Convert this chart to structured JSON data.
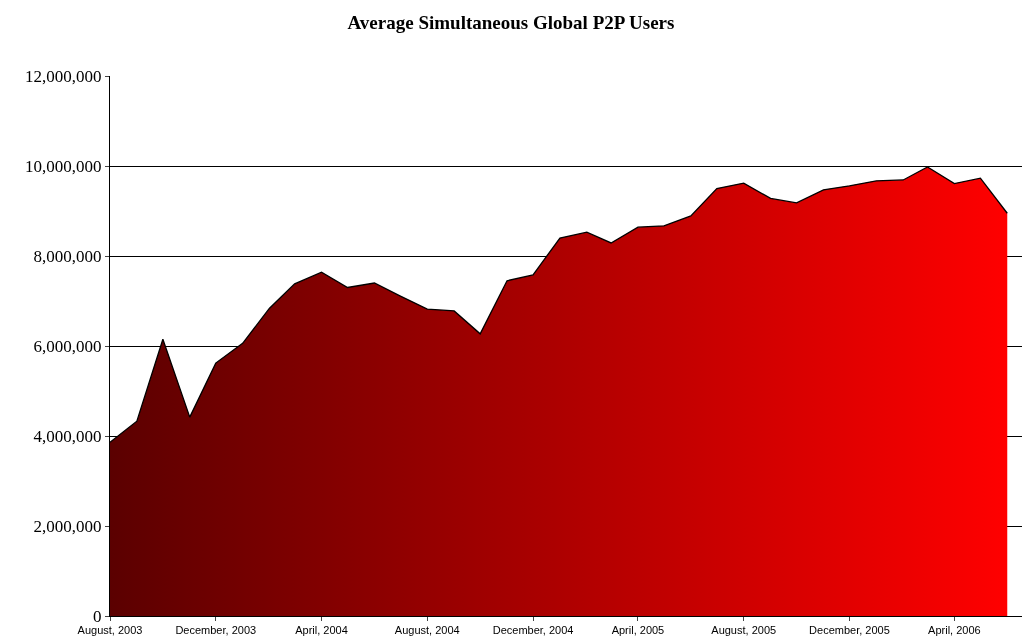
{
  "chart_data": {
    "type": "area",
    "title": "Average Simultaneous Global P2P Users",
    "x": [
      "2003-08",
      "2003-09",
      "2003-10",
      "2003-11",
      "2003-12",
      "2004-01",
      "2004-02",
      "2004-03",
      "2004-04",
      "2004-05",
      "2004-06",
      "2004-07",
      "2004-08",
      "2004-09",
      "2004-10",
      "2004-11",
      "2004-12",
      "2005-01",
      "2005-02",
      "2005-03",
      "2005-04",
      "2005-05",
      "2005-06",
      "2005-07",
      "2005-08",
      "2005-09",
      "2005-10",
      "2005-11",
      "2005-12",
      "2006-01",
      "2006-02",
      "2006-03",
      "2006-04",
      "2006-05",
      "2006-06"
    ],
    "series": [
      {
        "color": "#ff0000",
        "values": [
          3860000,
          4330000,
          6150000,
          4420000,
          5620000,
          6060000,
          6840000,
          7380000,
          7640000,
          7300000,
          7400000,
          7110000,
          6820000,
          6780000,
          6270000,
          7450000,
          7580000,
          8400000,
          8530000,
          8290000,
          8640000,
          8670000,
          8890000,
          9500000,
          9620000,
          9280000,
          9180000,
          9470000,
          9560000,
          9670000,
          9690000,
          9980000,
          9610000,
          9730000,
          8950000
        ]
      }
    ],
    "xlim": [
      "2003-08-01",
      "2006-06-18"
    ],
    "xticks": [
      {
        "value": "2003-08-01",
        "label": "August, 2003"
      },
      {
        "value": "2003-12-01",
        "label": "December, 2003"
      },
      {
        "value": "2004-04-01",
        "label": "April, 2004"
      },
      {
        "value": "2004-08-01",
        "label": "August, 2004"
      },
      {
        "value": "2004-12-01",
        "label": "December, 2004"
      },
      {
        "value": "2005-04-01",
        "label": "April, 2005"
      },
      {
        "value": "2005-08-01",
        "label": "August, 2005"
      },
      {
        "value": "2005-12-01",
        "label": "December, 2005"
      },
      {
        "value": "2006-04-01",
        "label": "April, 2006"
      }
    ],
    "ylim": [
      0,
      12000000
    ],
    "yticks": [
      0,
      {
        "value": 2000000,
        "label": "2,000,000"
      },
      {
        "value": 4000000,
        "label": "4,000,000"
      },
      {
        "value": 6000000,
        "label": "6,000,000"
      },
      {
        "value": 8000000,
        "label": "8,000,000"
      },
      {
        "value": 10000000,
        "label": "10,000,000"
      },
      {
        "value": 12000000,
        "label": "12,000,000"
      }
    ],
    "grid": "y"
  }
}
